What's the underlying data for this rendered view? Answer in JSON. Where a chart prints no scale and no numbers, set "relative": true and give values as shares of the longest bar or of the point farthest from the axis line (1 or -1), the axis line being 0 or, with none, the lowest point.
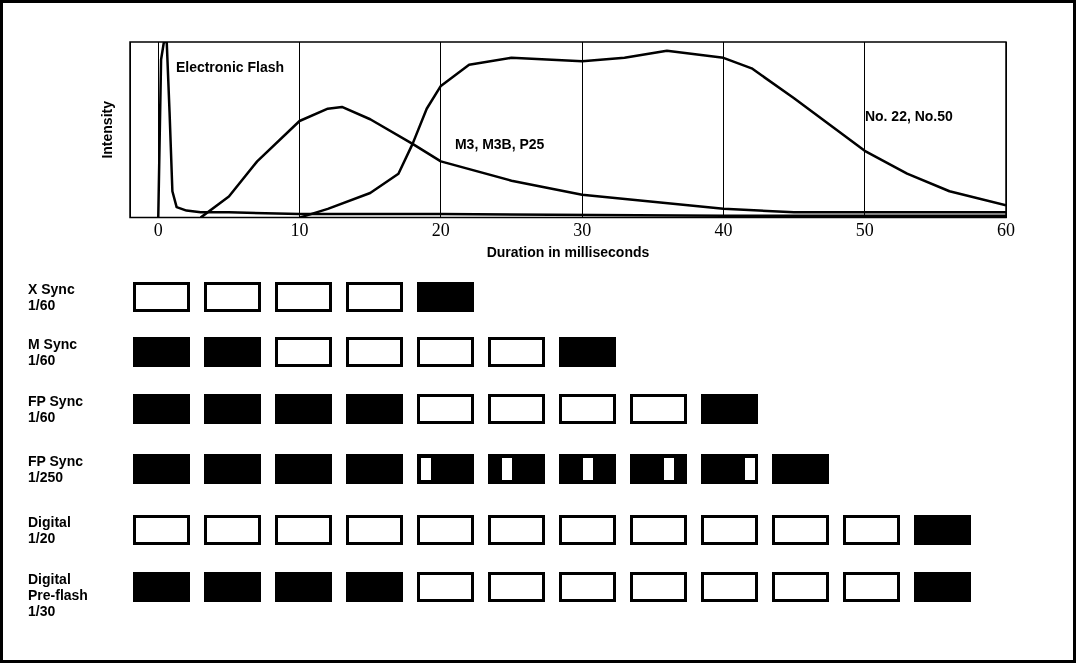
{
  "chart_data": {
    "type": "line",
    "xlabel": "Duration in milliseconds",
    "ylabel": "Intensity",
    "relative": true,
    "xlim": [
      -2,
      60
    ],
    "xticks": [
      0,
      10,
      20,
      30,
      40,
      50,
      60
    ],
    "grid": "x",
    "marker": "none",
    "line_style": "solid",
    "series": [
      {
        "name": "Electronic Flash",
        "color": "#000000",
        "x": [
          0,
          0.2,
          0.4,
          0.6,
          0.8,
          1.0,
          1.3,
          2,
          3,
          5,
          10,
          20,
          40,
          60
        ],
        "values": [
          0,
          0.9,
          1,
          1,
          0.6,
          0.15,
          0.06,
          0.04,
          0.03,
          0.03,
          0.02,
          0.02,
          0.01,
          0.01
        ]
      },
      {
        "name": "M3, M3B, P25",
        "color": "#000000",
        "x": [
          3,
          5,
          7,
          10,
          12,
          13,
          15,
          18,
          20,
          25,
          30,
          35,
          40,
          45,
          50,
          55,
          60
        ],
        "values": [
          0,
          0.12,
          0.32,
          0.55,
          0.62,
          0.63,
          0.56,
          0.42,
          0.32,
          0.21,
          0.13,
          0.09,
          0.05,
          0.03,
          0.03,
          0.03,
          0.03
        ]
      },
      {
        "name": "No. 22, No.50",
        "color": "#000000",
        "x": [
          10,
          12,
          15,
          17,
          18,
          19,
          20,
          22,
          25,
          30,
          33,
          36,
          40,
          42,
          45,
          48,
          50,
          53,
          56,
          60
        ],
        "values": [
          0,
          0.05,
          0.14,
          0.25,
          0.42,
          0.62,
          0.75,
          0.87,
          0.91,
          0.89,
          0.91,
          0.95,
          0.91,
          0.85,
          0.68,
          0.5,
          0.38,
          0.25,
          0.15,
          0.07
        ]
      }
    ],
    "annotations": [
      "X Sync\n1/60",
      "M  Sync\n1/60",
      "FP Sync\n1/60",
      "FP Sync\n1/250",
      "Digital\n1/20",
      "Digital\nPre-flash\n1/30"
    ]
  }
}
